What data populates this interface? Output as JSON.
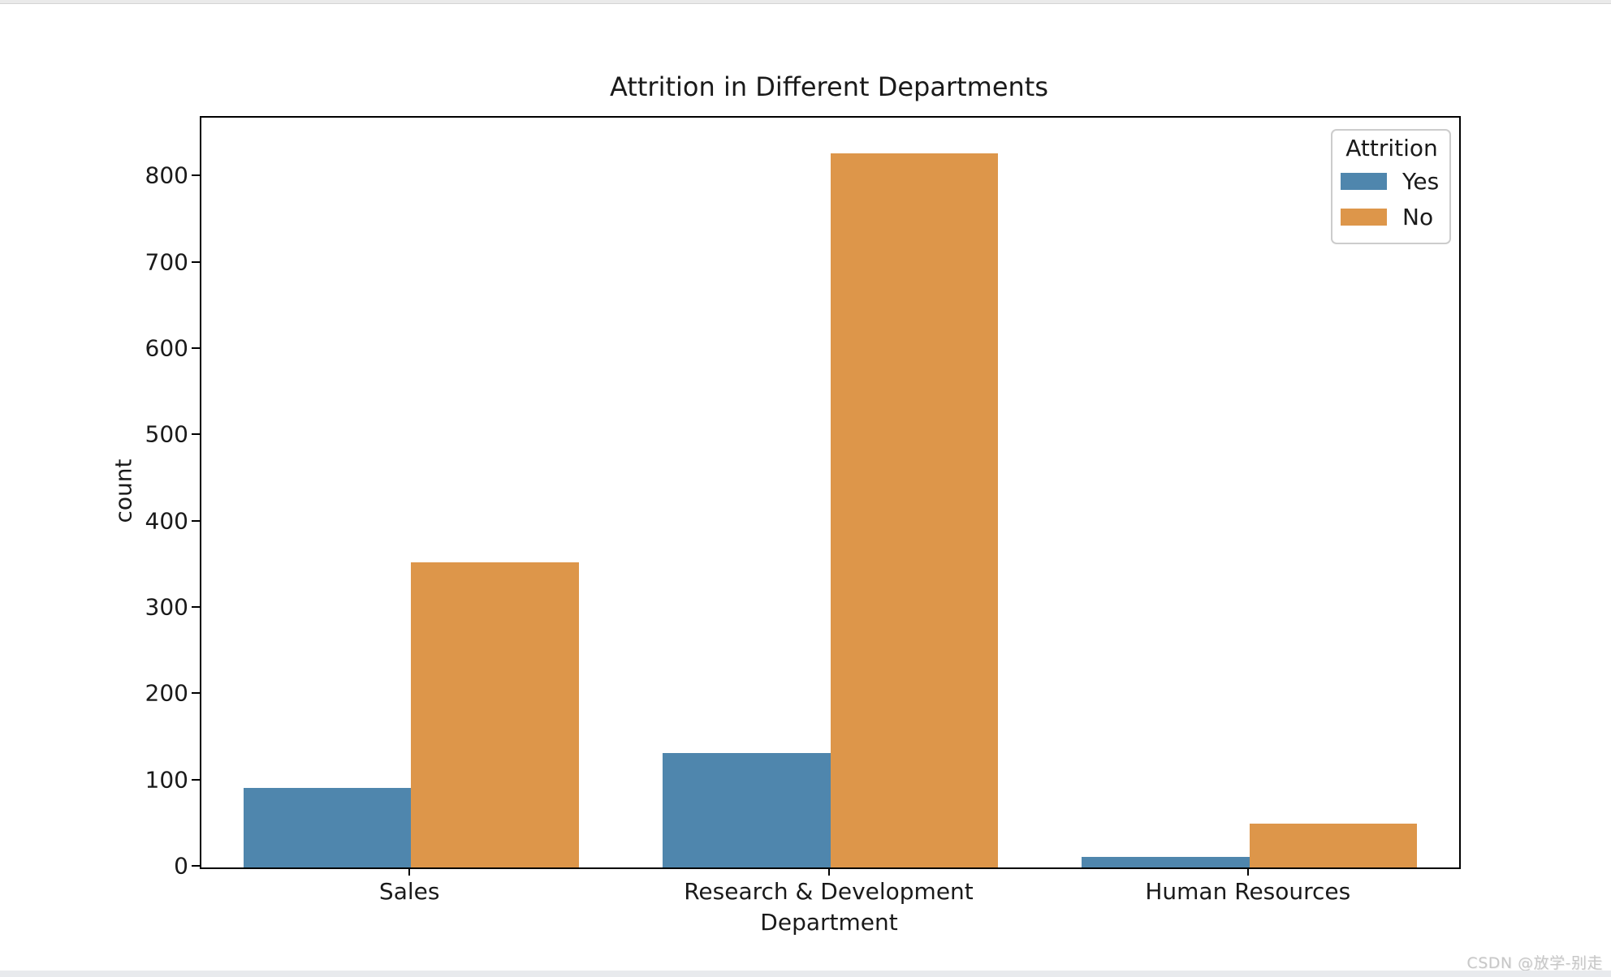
{
  "page": {
    "watermark": "CSDN @放学-别走"
  },
  "chart_data": {
    "type": "bar",
    "title": "Attrition in Different Departments",
    "xlabel": "Department",
    "ylabel": "count",
    "categories": [
      "Sales",
      "Research & Development",
      "Human Resources"
    ],
    "series": [
      {
        "name": "Yes",
        "color": "#4f86ad",
        "values": [
          92,
          133,
          12
        ]
      },
      {
        "name": "No",
        "color": "#dd964a",
        "values": [
          354,
          828,
          51
        ]
      }
    ],
    "legend": {
      "title": "Attrition",
      "position": "upper right"
    },
    "ylim": [
      0,
      869
    ],
    "yticks": [
      0,
      100,
      200,
      300,
      400,
      500,
      600,
      700,
      800
    ],
    "grid": false,
    "bar_group_width_fraction": 0.8
  }
}
